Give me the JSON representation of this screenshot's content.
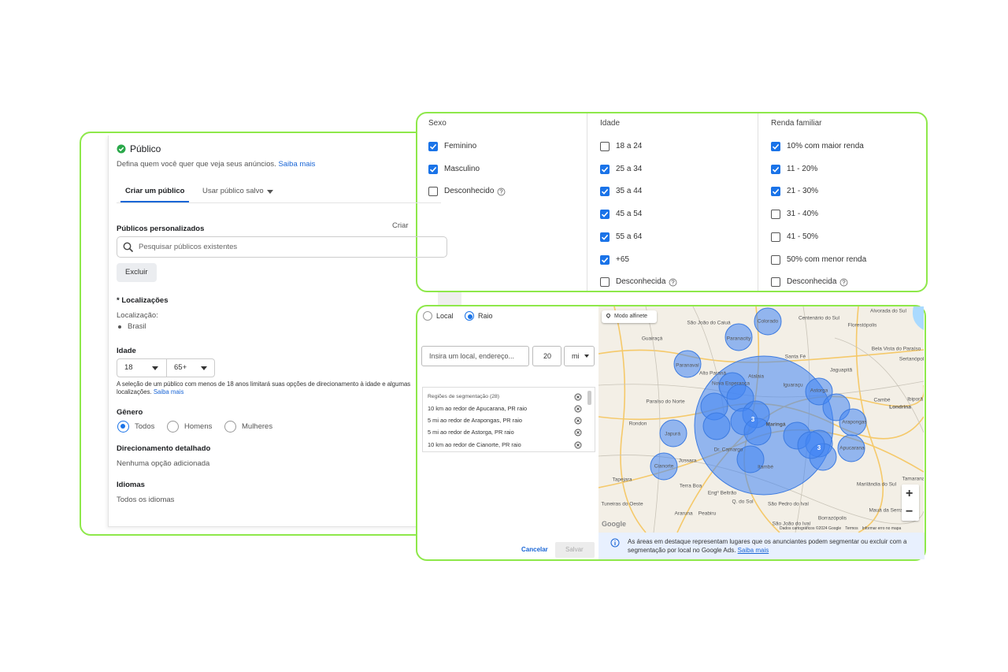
{
  "left_panel": {
    "title": "Público",
    "subtitle": "Defina quem você quer que veja seus anúncios.",
    "subtitle_link": "Saiba mais",
    "tabs": [
      {
        "label": "Criar um público",
        "active": true,
        "dropdown": false
      },
      {
        "label": "Usar público salvo",
        "active": false,
        "dropdown": true
      }
    ],
    "custom_audiences": {
      "label": "Públicos personalizados",
      "action": "Criar",
      "search_placeholder": "Pesquisar públicos existentes",
      "exclude_button": "Excluir"
    },
    "locations": {
      "label": "* Localizações",
      "sublabel": "Localização:",
      "items": [
        "Brasil"
      ]
    },
    "age": {
      "label": "Idade",
      "min": "18",
      "max": "65+",
      "note": "A seleção de um público com menos de 18 anos limitará suas opções de direcionamento à idade e algumas localizações.",
      "note_link": "Saiba mais"
    },
    "gender": {
      "label": "Gênero",
      "options": [
        {
          "label": "Todos",
          "selected": true
        },
        {
          "label": "Homens",
          "selected": false
        },
        {
          "label": "Mulheres",
          "selected": false
        }
      ]
    },
    "detailed": {
      "label": "Direcionamento detalhado",
      "value": "Nenhuma opção adicionada"
    },
    "languages": {
      "label": "Idiomas",
      "value": "Todos os idiomas"
    }
  },
  "demographics": {
    "columns": [
      {
        "title": "Sexo",
        "options": [
          {
            "label": "Feminino",
            "checked": true,
            "help": false
          },
          {
            "label": "Masculino",
            "checked": true,
            "help": false
          },
          {
            "label": "Desconhecido",
            "checked": false,
            "help": true
          }
        ]
      },
      {
        "title": "Idade",
        "options": [
          {
            "label": "18 a 24",
            "checked": false,
            "help": false
          },
          {
            "label": "25 a 34",
            "checked": true,
            "help": false
          },
          {
            "label": "35 a 44",
            "checked": true,
            "help": false
          },
          {
            "label": "45 a 54",
            "checked": true,
            "help": false
          },
          {
            "label": "55 a 64",
            "checked": true,
            "help": false
          },
          {
            "label": "+65",
            "checked": true,
            "help": false
          },
          {
            "label": "Desconhecida",
            "checked": false,
            "help": true
          }
        ]
      },
      {
        "title": "Renda familiar",
        "options": [
          {
            "label": "10% com maior renda",
            "checked": true,
            "help": false
          },
          {
            "label": "11 - 20%",
            "checked": true,
            "help": false
          },
          {
            "label": "21 - 30%",
            "checked": true,
            "help": false
          },
          {
            "label": "31 - 40%",
            "checked": false,
            "help": false
          },
          {
            "label": "41 - 50%",
            "checked": false,
            "help": false
          },
          {
            "label": "50% com menor renda",
            "checked": false,
            "help": false
          },
          {
            "label": "Desconhecida",
            "checked": false,
            "help": true
          }
        ]
      }
    ]
  },
  "location_panel": {
    "modes": [
      {
        "label": "Local",
        "selected": false
      },
      {
        "label": "Raio",
        "selected": true
      }
    ],
    "address_placeholder": "Insira um local, endereço...",
    "radius": "20",
    "unit": "mi",
    "regions": {
      "header": "Regiões de segmentação (28)",
      "items": [
        "10 km ao redor de Apucarana, PR raio",
        "5 mi ao redor de Arapongas, PR raio",
        "5 mi ao redor de Astorga, PR raio",
        "10 km ao redor de Cianorte, PR raio"
      ]
    },
    "cancel": "Cancelar",
    "save": "Salvar",
    "map": {
      "pin_mode": "Modo alfinete",
      "places": [
        "São João do Caiuá",
        "Centenário do Sul",
        "Alvorada do Sul",
        "Florestópolis",
        "Colorado",
        "Paranacity",
        "Guairaçá",
        "Bela Vista do Paraíso",
        "Sertanópolis",
        "Paranavaí",
        "Santa Fé",
        "Jaguapitã",
        "Nova Esperança",
        "Atalaia",
        "Iguaraçu",
        "Astorga",
        "Cambé",
        "Ibiporã",
        "Londrina",
        "Alto Paraná",
        "Paraíso do Norte",
        "Rondon",
        "Japurá",
        "Maringá",
        "Arapongas",
        "Apucarana",
        "Dr. Camargo",
        "Jussara",
        "Cianorte",
        "Itambé",
        "Tapejara",
        "Terra Boa",
        "Engº Beltrão",
        "Marilândia do Sul",
        "Tamarana",
        "Tuneiras do Oeste",
        "Araruna",
        "Peabiru",
        "Q. do Sol",
        "São Pedro do Ivaí",
        "Mauá da Serra",
        "Borrazópolis",
        "São João do Ivaí"
      ],
      "clusters": [
        "3",
        "3"
      ],
      "zoom": [
        "+",
        "−"
      ],
      "logo": "Google",
      "attribution": [
        "Dados cartográficos ©2024 Google",
        "Termos",
        "Informar erro no mapa"
      ]
    },
    "info": "As áreas em destaque representam lugares que os anunciantes podem segmentar ou excluir com a segmentação por local no Google Ads.",
    "info_link": "Saiba mais"
  }
}
